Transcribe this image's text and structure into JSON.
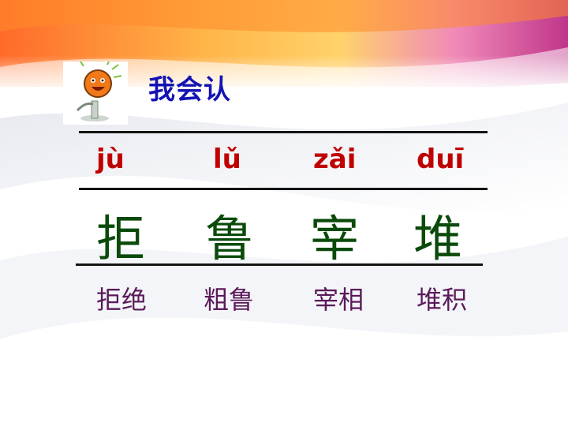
{
  "title": "我会认",
  "pinyin": [
    "jù",
    "lǔ",
    "zǎi",
    "duī"
  ],
  "characters": [
    "拒",
    "鲁",
    "宰",
    "堆"
  ],
  "words": [
    "拒绝",
    "粗鲁",
    "宰相",
    "堆积"
  ],
  "colors": {
    "title": "#1414b4",
    "pinyin": "#c00000",
    "characters": "#0a4a0a",
    "words": "#5a1a5a",
    "rules": "#141414"
  },
  "icons": [
    "microphone-mascot-icon"
  ]
}
